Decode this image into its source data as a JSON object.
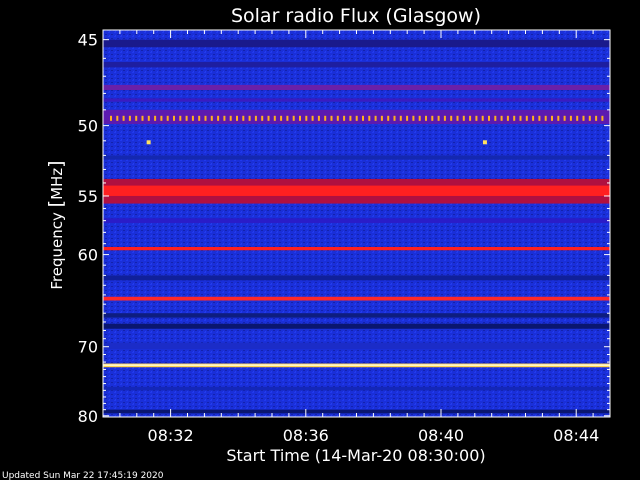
{
  "chart_data": {
    "type": "heatmap",
    "title": "Solar radio Flux (Glasgow)",
    "xlabel": "Start Time (14-Mar-20 08:30:00)",
    "ylabel_prefix": "Frequency ",
    "ylabel_unit": "MHz",
    "footer": "Updated Sun Mar 22 17:45:19 2020",
    "x_ticks": [
      "08:32",
      "08:36",
      "08:40",
      "08:44"
    ],
    "x_tick_minutes": [
      2,
      6,
      10,
      14
    ],
    "x_range_minutes": [
      0,
      15
    ],
    "y_ticks": [
      45,
      50,
      55,
      60,
      70,
      80
    ],
    "y_range_mhz": [
      44.5,
      80.2
    ],
    "y_scale": "reciprocal",
    "colors": {
      "background": "#000000",
      "base": "#1a2fd8",
      "interference": "#ff2020",
      "strong": "#fff5b0",
      "axis": "#ffffff"
    },
    "bands": [
      {
        "from_mhz": 45.0,
        "to_mhz": 45.4,
        "color": "#1a1a8c"
      },
      {
        "from_mhz": 46.2,
        "to_mhz": 46.5,
        "color": "#1e1ea0"
      },
      {
        "from_mhz": 47.5,
        "to_mhz": 47.8,
        "color": "#6a20a8"
      },
      {
        "from_mhz": 48.3,
        "to_mhz": 48.5,
        "color": "#3a1cc0"
      },
      {
        "from_mhz": 49.0,
        "to_mhz": 49.9,
        "color": "#5c1ab0"
      },
      {
        "from_mhz": 52.0,
        "to_mhz": 52.3,
        "color": "#1428b0"
      },
      {
        "from_mhz": 53.7,
        "to_mhz": 55.6,
        "color": "#b01040"
      },
      {
        "from_mhz": 54.2,
        "to_mhz": 55.0,
        "color": "#ff2020"
      },
      {
        "from_mhz": 56.8,
        "to_mhz": 57.2,
        "color": "#2a1cc8"
      },
      {
        "from_mhz": 59.3,
        "to_mhz": 59.6,
        "color": "#ff2020"
      },
      {
        "from_mhz": 62.0,
        "to_mhz": 62.5,
        "color": "#10209a"
      },
      {
        "from_mhz": 64.2,
        "to_mhz": 64.6,
        "color": "#ff2828"
      },
      {
        "from_mhz": 66.0,
        "to_mhz": 66.5,
        "color": "#0d1d80"
      },
      {
        "from_mhz": 67.2,
        "to_mhz": 67.8,
        "color": "#0a1670"
      },
      {
        "from_mhz": 69.5,
        "to_mhz": 70.3,
        "color": "#1b2cc8"
      },
      {
        "from_mhz": 72.2,
        "to_mhz": 72.7,
        "color": "#ffcf40"
      },
      {
        "from_mhz": 72.3,
        "to_mhz": 72.55,
        "color": "#fff8c8"
      },
      {
        "from_mhz": 75.5,
        "to_mhz": 76.0,
        "color": "#1427b8"
      },
      {
        "from_mhz": 79.0,
        "to_mhz": 79.6,
        "color": "#0a1670"
      }
    ],
    "spike_row_mhz": 49.5,
    "spots": [
      {
        "minute": 1.35,
        "mhz": 51.1
      },
      {
        "minute": 11.3,
        "mhz": 51.1
      }
    ]
  }
}
